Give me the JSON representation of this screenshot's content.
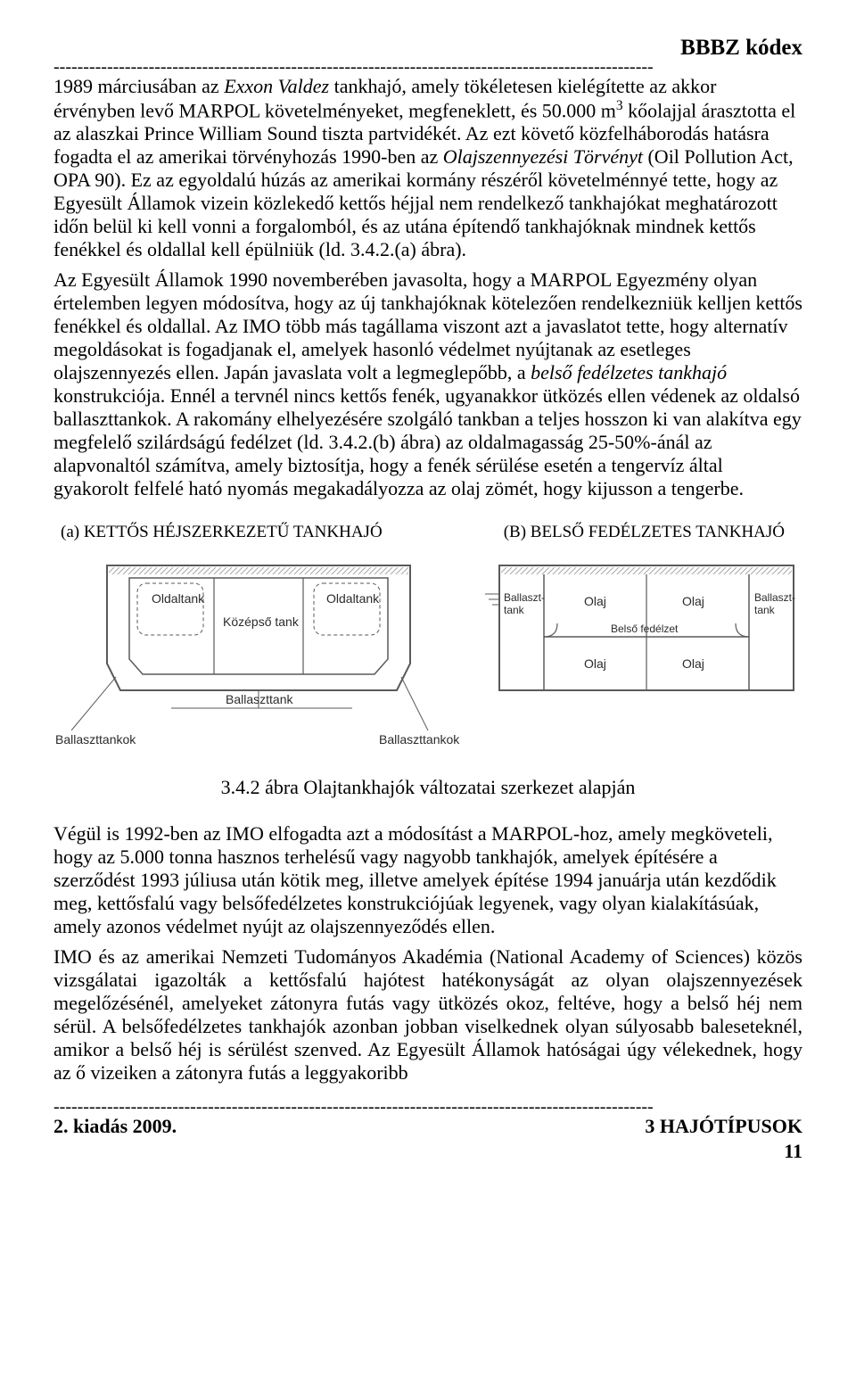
{
  "header": {
    "title": "BBBZ kódex"
  },
  "paragraphs": {
    "p1_html": "1989 márciusában az <span class='italic'>Exxon Valdez</span> tankhajó, amely tökéletesen kielégítette az akkor érvényben levő MARPOL követelményeket, megfeneklett, és 50.000 m<sup>3</sup> kőolajjal árasztotta el az alaszkai Prince William Sound tiszta partvidékét. Az ezt követő közfelháborodás hatásra fogadta el az amerikai törvényhozás 1990-ben az <span class='italic'>Olajszennyezési Törvényt</span> (Oil Pollution Act, OPA 90). Ez az egyoldalú húzás az amerikai kormány részéről követelménnyé tette, hogy az Egyesült Államok vizein közlekedő kettős héjjal nem rendelkező tankhajókat meghatározott időn belül ki kell vonni a forgalomból, és az utána építendő tankhajóknak mindnek kettős fenékkel és oldallal kell épülniük (ld. 3.4.2.(a) ábra).",
    "p2_html": "Az Egyesült Államok 1990 novemberében javasolta, hogy a MARPOL Egyezmény olyan értelemben legyen módosítva, hogy az új tankhajóknak kötelezően rendelkezniük kelljen kettős fenékkel és oldallal. Az IMO több más tagállama viszont azt a javaslatot tette, hogy alternatív megoldásokat is fogadjanak el, amelyek hasonló védelmet nyújtanak az esetleges olajszennyezés ellen. Japán javaslata volt a legmeglepőbb, a <span class='italic'>belső fedélzetes tankhajó</span> konstrukciója. Ennél a tervnél nincs kettős fenék, ugyanakkor ütközés ellen védenek az oldalsó ballaszttankok. A rakomány elhelyezésére szolgáló tankban a teljes hosszon ki van alakítva egy megfelelő szilárdságú fedélzet (ld. 3.4.2.(b) ábra) az oldalmagasság 25-50%-ánál az alapvonaltól számítva, amely biztosítja, hogy a fenék sérülése esetén a tengervíz által gyakorolt felfelé ható nyomás megakadályozza az olaj zömét, hogy kijusson a tengerbe.",
    "p3_html": "Végül is 1992-ben az IMO elfogadta azt a módosítást a MARPOL-hoz, amely megköveteli, hogy az 5.000 tonna hasznos terhelésű vagy nagyobb tankhajók, amelyek építésére a szerződést 1993 júliusa után kötik meg, illetve amelyek építése 1994 januárja után kezdődik meg, kettősfalú vagy belsőfedélzetes konstrukciójúak legyenek, vagy olyan kialakításúak, amely azonos védelmet nyújt az olajszennyeződés ellen.",
    "p4_html": "IMO és az amerikai Nemzeti Tudományos Akadémia (National Academy of Sciences) közös vizsgálatai igazolták a kettősfalú hajótest hatékonyságát az olyan olajszennyezések megelőzésénél, amelyeket zátonyra futás vagy ütközés okoz, feltéve, hogy a belső héj nem sérül. A belsőfedélzetes tankhajók azonban jobban viselkednek olyan súlyosabb baleseteknél, amikor a belső héj is sérülést szenved. Az Egyesült Államok hatóságai úgy vélekednek, hogy az ő vizeiken a zátonyra futás a leggyakoribb"
  },
  "figure": {
    "caption_a": "(a) KETTŐS HÉJSZERKEZETŰ TANKHAJÓ",
    "caption_b": "(B) BELSŐ FEDÉLZETES TANKHAJÓ",
    "diagram_a": {
      "stroke": "#5a5a5a",
      "fill_hatch": "#a8a8a8",
      "text_color": "#2b2b2b",
      "labels": {
        "oldaltank_l": "Oldaltank",
        "oldaltank_r": "Oldaltank",
        "kozepso": "Középső tank",
        "ballaszttank_center": "Ballaszttank",
        "ballaszttankok_l": "Ballaszttankok",
        "ballaszttankok_r": "Ballaszttankok"
      }
    },
    "diagram_b": {
      "stroke": "#5a5a5a",
      "fill_hatch": "#a8a8a8",
      "labels": {
        "ballaszt_l": "Ballaszt-\ntank",
        "ballaszt_r": "Ballaszt-\ntank",
        "olaj": "Olaj",
        "belso_fedelezt": "Belső fedélzet"
      }
    },
    "caption_main": "3.4.2 ábra Olajtankhajók változatai szerkezet alapján"
  },
  "footer": {
    "edition": "2. kiadás 2009.",
    "section": "3 HAJÓTÍPUSOK",
    "page": "11"
  },
  "colors": {
    "text": "#000000",
    "diagram_stroke": "#5a5a5a",
    "diagram_label": "#2b2b2b",
    "background": "#ffffff"
  }
}
